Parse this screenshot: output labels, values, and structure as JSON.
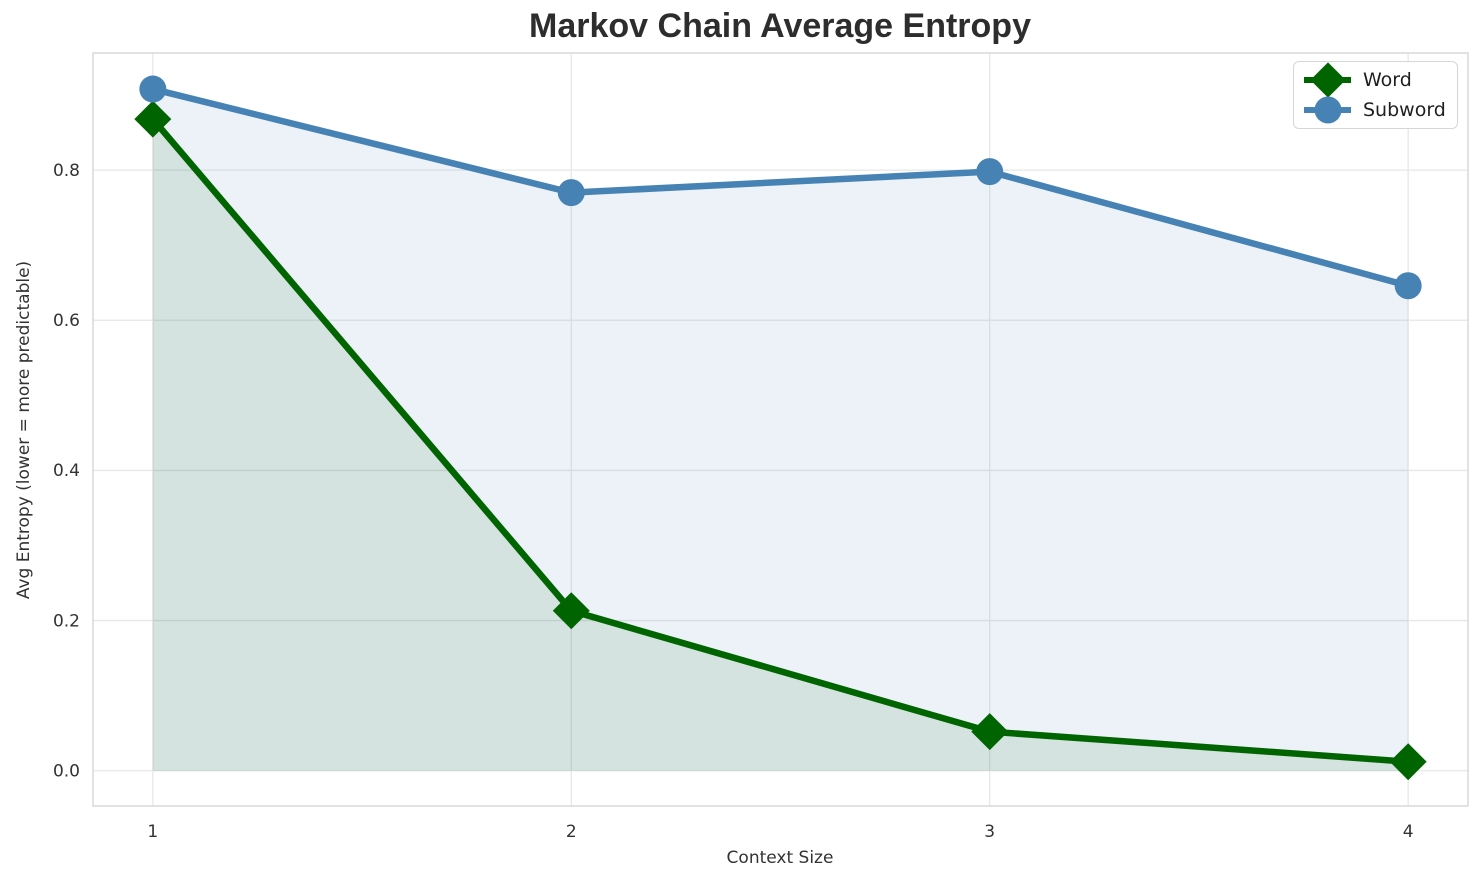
{
  "title": "Markov Chain Average Entropy",
  "chart_data": {
    "type": "line",
    "title": "Markov Chain Average Entropy",
    "xlabel": "Context Size",
    "ylabel": "Avg Entropy (lower = more predictable)",
    "x": [
      1,
      2,
      3,
      4
    ],
    "series": [
      {
        "name": "Word",
        "marker": "diamond",
        "color": "#006400",
        "fill_alpha": 0.1,
        "values": [
          0.868,
          0.213,
          0.052,
          0.012
        ]
      },
      {
        "name": "Subword",
        "marker": "circle",
        "color": "#4682b4",
        "fill_alpha": 0.1,
        "values": [
          0.908,
          0.77,
          0.798,
          0.646
        ]
      }
    ],
    "xlim": [
      0.857,
      4.143
    ],
    "ylim": [
      -0.047,
      0.956
    ],
    "xticks": {
      "values": [
        1,
        2,
        3,
        4
      ],
      "labels": [
        "1",
        "2",
        "3",
        "4"
      ]
    },
    "yticks": {
      "values": [
        0.0,
        0.2,
        0.4,
        0.6,
        0.8
      ],
      "labels": [
        "0.0",
        "0.2",
        "0.4",
        "0.6",
        "0.8"
      ]
    },
    "grid": true,
    "area_fill_to_zero": true,
    "legend_position": "upper right"
  },
  "colors": {
    "background": "#ffffff",
    "grid": "#e7e7e7",
    "spine": "#d9d9d9",
    "tick_text": "#333333",
    "title_text": "#2d2d2d",
    "word_series": "#006400",
    "subword_series": "#4682b4"
  }
}
